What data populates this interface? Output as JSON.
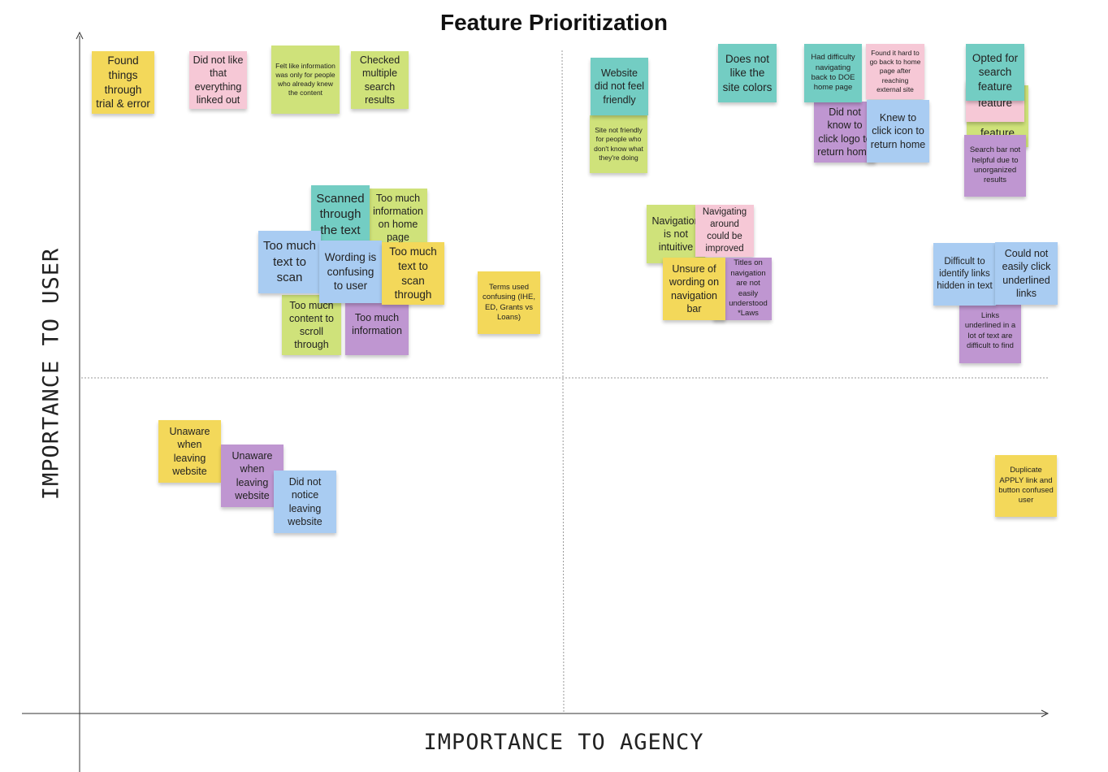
{
  "title": "Feature Prioritization",
  "axes": {
    "x_label": "IMPORTANCE TO AGENCY",
    "y_label": "IMPORTANCE TO USER"
  },
  "colors": {
    "yellow": "#f3d85a",
    "green": "#cfe27a",
    "pink": "#f6c8d6",
    "teal": "#73cdc3",
    "blue": "#a9ccf2",
    "purple": "#bf96d1"
  },
  "notes": {
    "found_things": "Found things through trial & error",
    "did_not_like_linked": "Did not like that everything linked out",
    "felt_like_info": "Felt like information was only for people who already knew the content",
    "checked_multiple": "Checked multiple search results",
    "website_not_friendly": "Website did not feel friendly",
    "site_not_friendly": "Site not friendly for people who don't know what they're doing",
    "does_not_like_colors": "Does not like the site colors",
    "had_difficulty": "Had difficulty navigating back to DOE home page",
    "found_it_hard": "Found it hard to go back to home page after reaching external site",
    "did_not_know_logo": "Did not know to click logo to return home",
    "knew_to_click_icon": "Knew to click icon to return home",
    "feature_pink": "feature",
    "feature_green": "feature",
    "opted_for_search": "Opted for search feature",
    "search_bar_not_helpful": "Search bar not helpful due to unorganized results",
    "scanned_through": "Scanned through the text",
    "too_much_info_home": "Too much information on home page",
    "too_much_text_scan": "Too much text to scan",
    "wording_confusing": "Wording is confusing to user",
    "too_much_text_scan_through": "Too much text to scan through",
    "too_much_content": "Too much content to scroll through",
    "too_much_information": "Too much information",
    "terms_used_confusing": "Terms used confusing (IHE, ED, Grants vs Loans)",
    "navigation_not_intuitive": "Navigation is not intuitive",
    "navigating_around": "Navigating around could be improved",
    "titles_on_navigation": "Titles on navigation are not easily understood *Laws",
    "unsure_of_wording": "Unsure of wording on navigation bar",
    "difficult_to_identify": "Difficult to identify links hidden in text",
    "could_not_click": "Could not easily click underlined links",
    "links_underlined": "Links underlined in a lot of text are difficult to find",
    "unaware_yellow": "Unaware when leaving website",
    "unaware_purple": "Unaware when leaving website",
    "did_not_notice": "Did not notice leaving website",
    "duplicate_apply": "Duplicate APPLY link and button confused user"
  }
}
